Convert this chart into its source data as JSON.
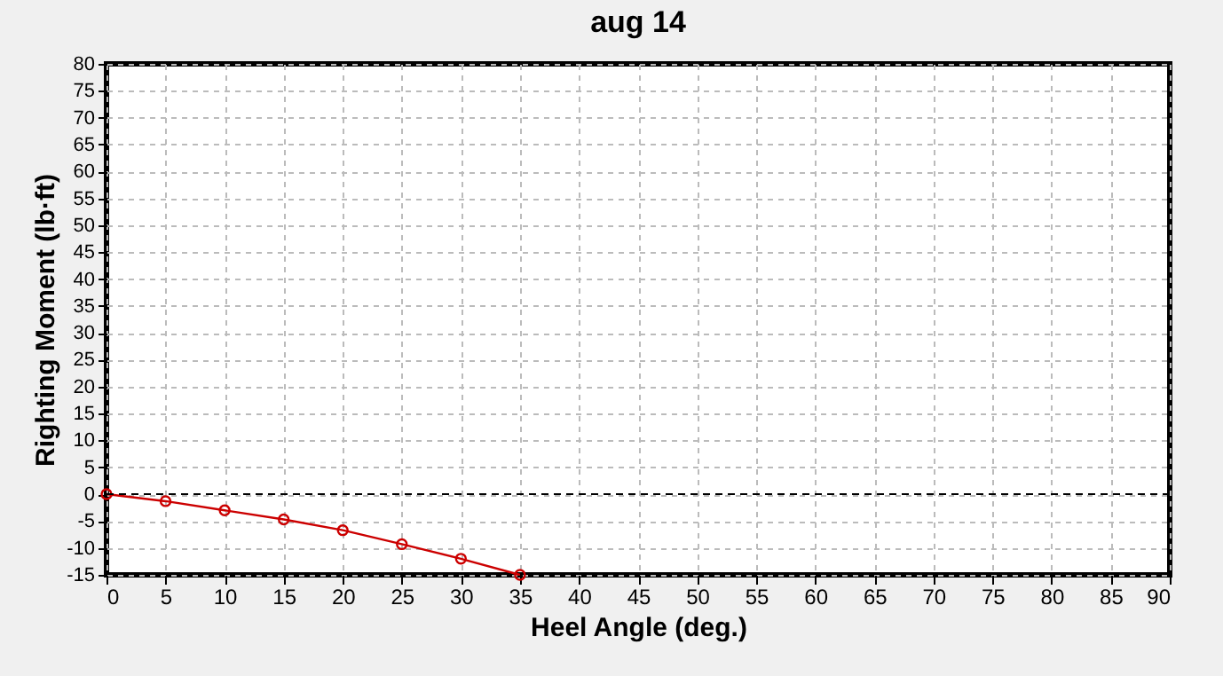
{
  "chart_data": {
    "type": "line",
    "title": "aug 14",
    "xlabel": "Heel Angle (deg.)",
    "ylabel": "Righting Moment (lb·ft)",
    "x": [
      0,
      5,
      10,
      15,
      20,
      25,
      30,
      35
    ],
    "series": [
      {
        "color": "#cc0000",
        "values": [
          0,
          -1.3,
          -3,
          -4.7,
          -6.7,
          -9.3,
          -12,
          -15
        ]
      }
    ],
    "xlim": [
      0,
      90
    ],
    "xticks": [
      0,
      5,
      10,
      15,
      20,
      25,
      30,
      35,
      40,
      45,
      50,
      55,
      60,
      65,
      70,
      75,
      80,
      85,
      90
    ],
    "ylim": [
      -15,
      80
    ],
    "yticks": [
      -15,
      -10,
      -5,
      0,
      5,
      10,
      15,
      20,
      25,
      30,
      35,
      40,
      45,
      50,
      55,
      60,
      65,
      70,
      75,
      80
    ],
    "grid": true,
    "marker": "circle",
    "line_style": "solid",
    "legend": false,
    "ref_lines": [
      {
        "axis": "y",
        "value": 0,
        "color": "#000000",
        "line_style": "dashed"
      }
    ]
  }
}
